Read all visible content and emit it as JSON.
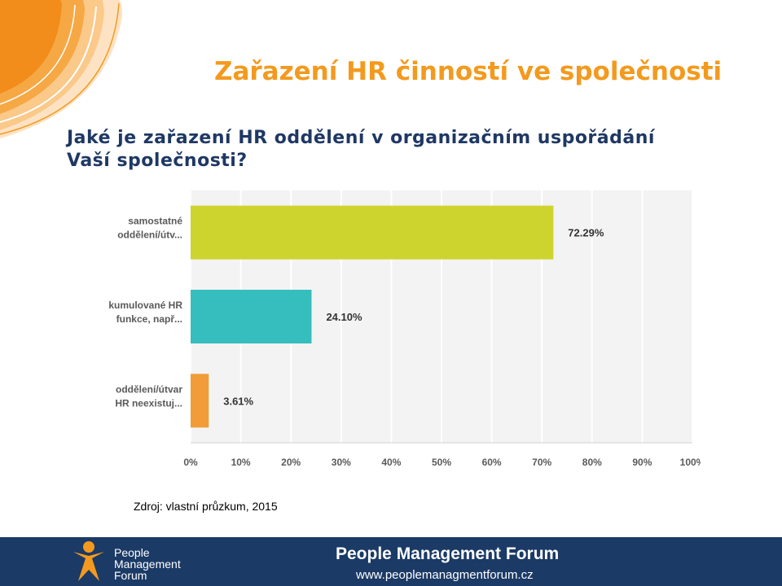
{
  "slide": {
    "title": "Zařazení HR činností ve společnosti",
    "question_line1": "Jaké je zařazení HR oddělení v organizačním uspořádání",
    "question_line2": "Vaší společnosti?",
    "source": "Zdroj: vlastní průzkum, 2015"
  },
  "chart_data": {
    "type": "bar",
    "orientation": "horizontal",
    "categories": [
      [
        "samostatné",
        "oddělení/útv..."
      ],
      [
        "kumulované HR",
        "funkce, např..."
      ],
      [
        "oddělení/útvar",
        "HR neexistuj..."
      ]
    ],
    "values": [
      72.29,
      24.1,
      3.61
    ],
    "data_labels": [
      "72.29%",
      "24.10%",
      "3.61%"
    ],
    "xlim": [
      0,
      100
    ],
    "x_ticks": [
      "0%",
      "10%",
      "20%",
      "30%",
      "40%",
      "50%",
      "60%",
      "70%",
      "80%",
      "90%",
      "100%"
    ],
    "grid": true,
    "colors": [
      "#cdd42e",
      "#36bdbd",
      "#f19c38"
    ]
  },
  "footer": {
    "logo_lines": [
      "People",
      "Management",
      "Forum"
    ],
    "name": "People Management Forum",
    "url": "www.peoplemanagmentforum.cz",
    "background": "#1b3a66",
    "logo_color": "#f39a1e"
  }
}
